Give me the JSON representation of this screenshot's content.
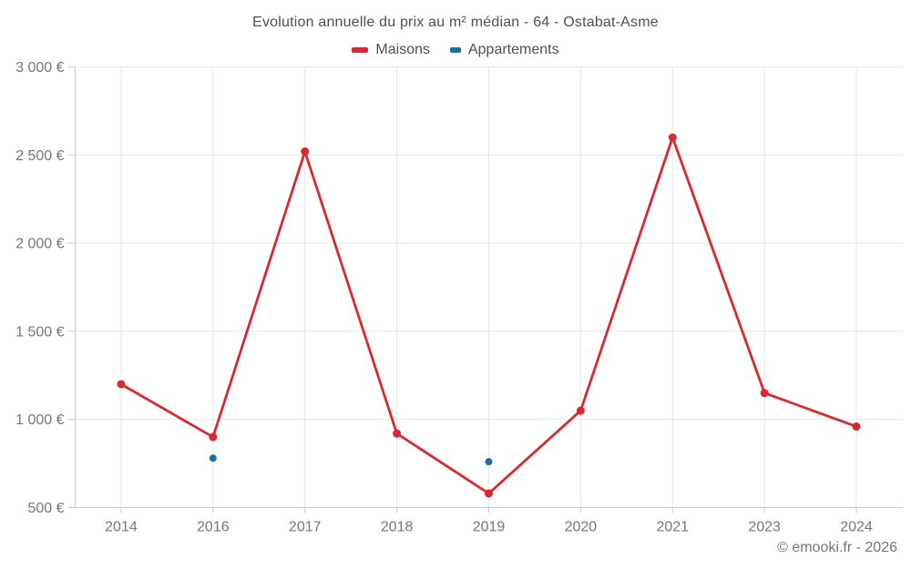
{
  "chart_data": {
    "type": "line",
    "title": "Evolution annuelle du prix au m² médian - 64 - Ostabat-Asme",
    "categories": [
      "2014",
      "2016",
      "2017",
      "2018",
      "2019",
      "2020",
      "2021",
      "2023",
      "2024"
    ],
    "series": [
      {
        "name": "Maisons",
        "color": "#d8292f",
        "draw_line": true,
        "marker_radius": 4.5,
        "values": [
          1200,
          900,
          2520,
          920,
          580,
          1050,
          2600,
          1150,
          960
        ]
      },
      {
        "name": "Appartements",
        "color": "#17719f",
        "draw_line": false,
        "marker_radius": 4,
        "values": [
          null,
          780,
          null,
          null,
          760,
          null,
          null,
          null,
          null
        ]
      }
    ],
    "xlabel": "",
    "ylabel": "",
    "ylim": [
      500,
      3000
    ],
    "y_ticks": [
      {
        "value": 500,
        "label": "500 €"
      },
      {
        "value": 1000,
        "label": "1 000 €"
      },
      {
        "value": 1500,
        "label": "1 500 €"
      },
      {
        "value": 2000,
        "label": "2 000 €"
      },
      {
        "value": 2500,
        "label": "2 500 €"
      },
      {
        "value": 3000,
        "label": "3 000 €"
      }
    ],
    "grid": true,
    "legend_position": "top",
    "colors": {
      "grid": "#e7e7e7",
      "axis": "#c9c9c9",
      "tick_text": "#757575",
      "title_text": "#4f4f4f",
      "background": "#ffffff"
    }
  },
  "footer": {
    "text": "© emooki.fr - 2026"
  }
}
